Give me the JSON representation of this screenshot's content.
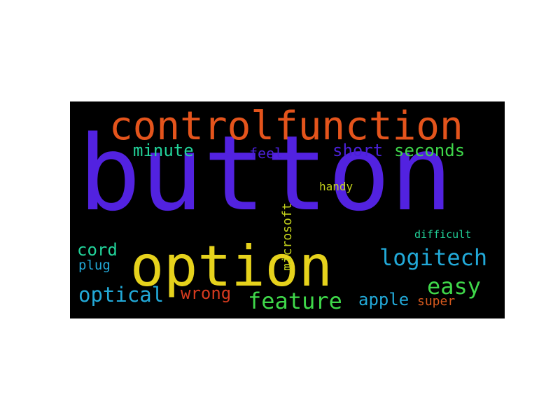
{
  "word_cloud": {
    "background_color": "#000000",
    "words": [
      {
        "text": "button",
        "color": "#5222e0"
      },
      {
        "text": "controlfunction",
        "color": "#e4541c"
      },
      {
        "text": "option",
        "color": "#e6d21c"
      },
      {
        "text": "minute",
        "color": "#22d39a"
      },
      {
        "text": "feel",
        "color": "#4a20d6"
      },
      {
        "text": "shortseconds",
        "color": "#4a20d6",
        "parts": [
          "short",
          "seconds"
        ],
        "part_colors": [
          "#4a20d6",
          "#3fd84a"
        ]
      },
      {
        "text": "handy",
        "color": "#c4d21c"
      },
      {
        "text": "microsoft",
        "color": "#c4d21c"
      },
      {
        "text": "difficult",
        "color": "#22d39a"
      },
      {
        "text": "cord",
        "color": "#22d39a"
      },
      {
        "text": "plug",
        "color": "#22a9d8"
      },
      {
        "text": "logitech",
        "color": "#22a9d8"
      },
      {
        "text": "easy",
        "color": "#3fd84a"
      },
      {
        "text": "optical",
        "color": "#22a9d8"
      },
      {
        "text": "wrong",
        "color": "#d63a1e"
      },
      {
        "text": "feature",
        "color": "#3fd84a"
      },
      {
        "text": "apple",
        "color": "#22a9d8"
      },
      {
        "text": "super",
        "color": "#d85a1e"
      }
    ]
  }
}
